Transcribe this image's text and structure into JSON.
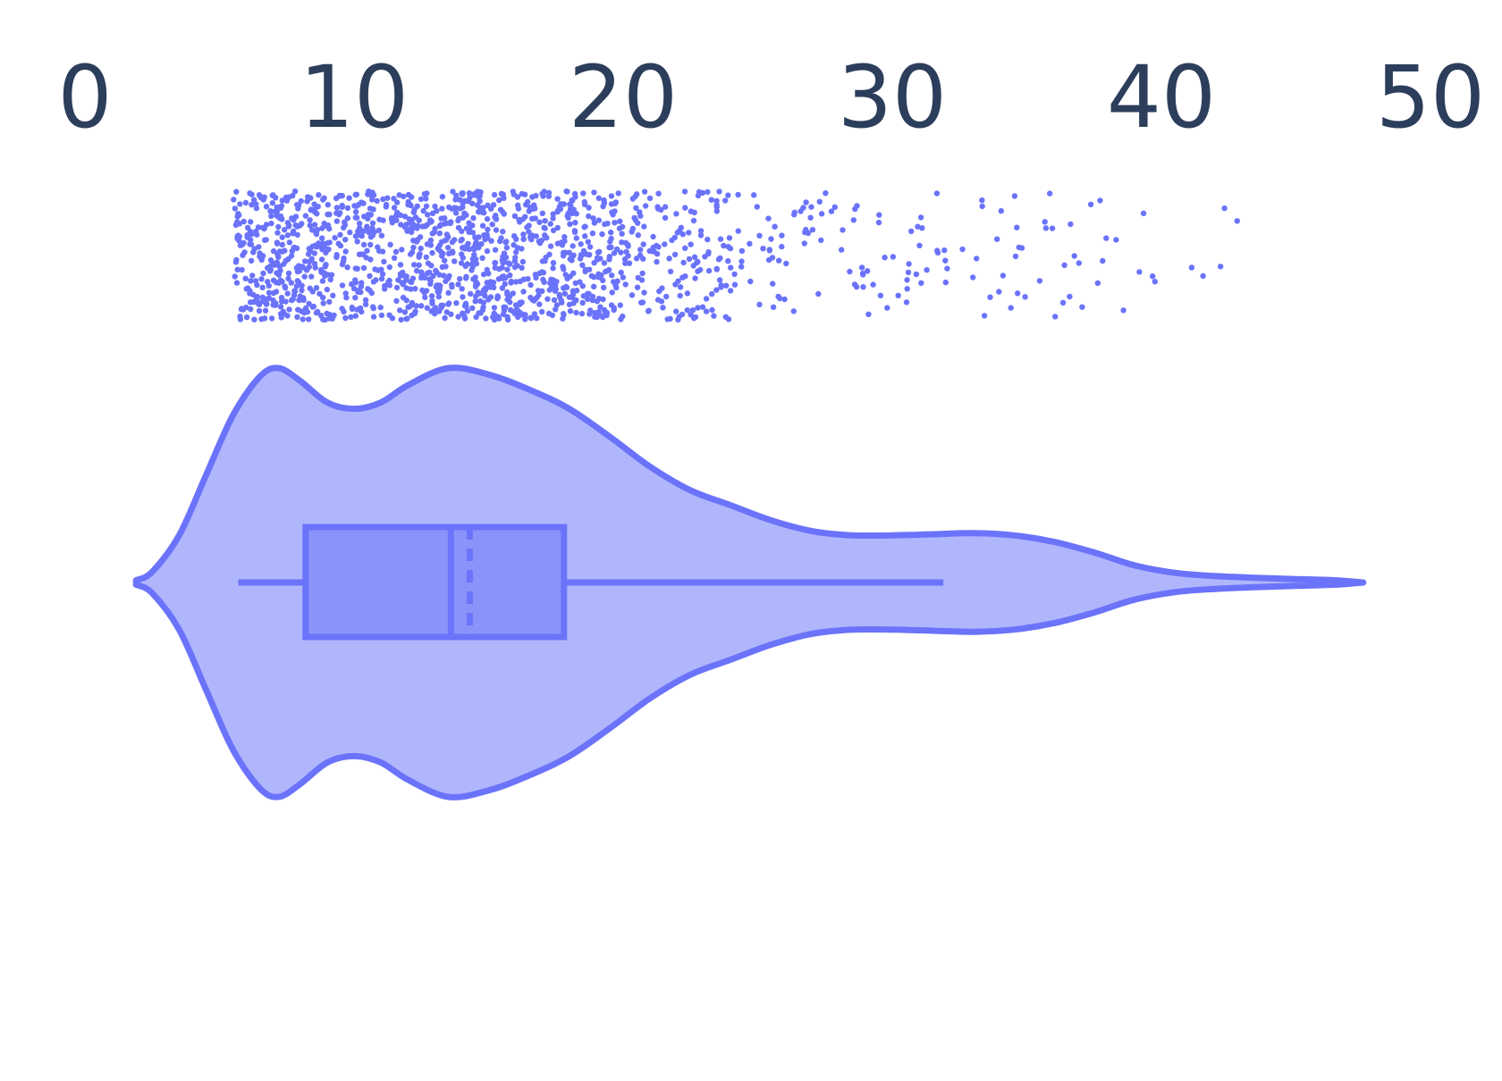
{
  "chart_data": {
    "type": "violin",
    "orientation": "horizontal",
    "axis": {
      "position": "top",
      "xlim": [
        0,
        50
      ],
      "ticks": [
        0,
        10,
        20,
        30,
        40,
        50
      ],
      "tick_labels": [
        "0",
        "10",
        "20",
        "30",
        "40",
        "50"
      ],
      "grid": false
    },
    "colors": {
      "stroke": "#6b73fa",
      "violin_fill": "#b0b6fc",
      "box_fill": "#8b93fb",
      "point": "#6b73fa",
      "tick_text": "#2c3e5c"
    },
    "box": {
      "whisker_low": 5.7,
      "q1": 8.2,
      "median": 13.6,
      "mean": 14.3,
      "q3": 17.8,
      "whisker_high": 31.9
    },
    "density": {
      "x": [
        1.9,
        2.5,
        3.5,
        4.5,
        5.5,
        6.5,
        7.2,
        8.0,
        9.0,
        10.0,
        11.0,
        12.0,
        13.5,
        15.0,
        16.5,
        18.0,
        19.5,
        21.0,
        22.5,
        24.0,
        25.5,
        27.0,
        28.5,
        30.0,
        31.5,
        33.0,
        34.5,
        36.0,
        37.5,
        39.0,
        40.5,
        42.0,
        43.5,
        45.0,
        46.5,
        47.5
      ],
      "y": [
        0.01,
        0.05,
        0.22,
        0.5,
        0.78,
        0.96,
        1.0,
        0.94,
        0.84,
        0.81,
        0.84,
        0.92,
        1.0,
        0.97,
        0.9,
        0.81,
        0.68,
        0.54,
        0.43,
        0.36,
        0.29,
        0.24,
        0.22,
        0.22,
        0.225,
        0.23,
        0.22,
        0.19,
        0.14,
        0.08,
        0.045,
        0.03,
        0.022,
        0.016,
        0.01,
        0.0
      ]
    },
    "points_summary": {
      "n_approx": 1500,
      "x_min": 5.5,
      "x_max": 43.9,
      "description_note": ""
    }
  }
}
